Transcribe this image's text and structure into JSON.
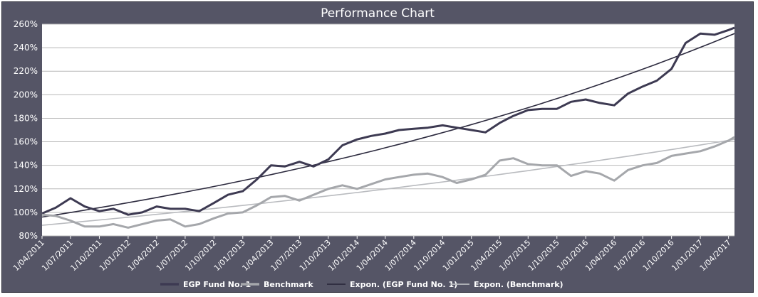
{
  "chart_data": {
    "type": "line",
    "title": "Performance Chart",
    "xlabel": "",
    "ylabel": "",
    "ylim": [
      80,
      260
    ],
    "y_ticks": [
      "80%",
      "100%",
      "120%",
      "140%",
      "160%",
      "180%",
      "200%",
      "220%",
      "240%",
      "260%"
    ],
    "x_ticks": [
      "1/04/2011",
      "1/07/2011",
      "1/10/2011",
      "1/01/2012",
      "1/04/2012",
      "1/07/2012",
      "1/10/2012",
      "1/01/2013",
      "1/04/2013",
      "1/07/2013",
      "1/10/2013",
      "1/01/2014",
      "1/04/2014",
      "1/07/2014",
      "1/10/2014",
      "1/01/2015",
      "1/04/2015",
      "1/07/2015",
      "1/10/2015",
      "1/01/2016",
      "1/04/2016",
      "1/07/2016",
      "1/10/2016",
      "1/01/2017",
      "1/04/2017"
    ],
    "grid": true,
    "legend_position": "bottom",
    "background_color": "#555566",
    "plot_color": "#ffffff",
    "series": [
      {
        "name": "EGP Fund No. 1",
        "color": "#3d3a52",
        "x": [
          "2011-04-01",
          "2011-05-15",
          "2011-07-01",
          "2011-08-15",
          "2011-10-01",
          "2011-11-15",
          "2012-01-01",
          "2012-02-15",
          "2012-04-01",
          "2012-05-15",
          "2012-07-01",
          "2012-08-15",
          "2012-10-01",
          "2012-11-15",
          "2013-01-01",
          "2013-02-15",
          "2013-04-01",
          "2013-05-15",
          "2013-07-01",
          "2013-08-15",
          "2013-10-01",
          "2013-11-15",
          "2014-01-01",
          "2014-02-15",
          "2014-04-01",
          "2014-05-15",
          "2014-07-01",
          "2014-08-15",
          "2014-10-01",
          "2014-11-15",
          "2015-01-01",
          "2015-02-15",
          "2015-04-01",
          "2015-05-15",
          "2015-07-01",
          "2015-08-15",
          "2015-10-01",
          "2015-11-15",
          "2016-01-01",
          "2016-02-15",
          "2016-04-01",
          "2016-05-15",
          "2016-07-01",
          "2016-08-15",
          "2016-10-01",
          "2016-11-15",
          "2017-01-01",
          "2017-02-15",
          "2017-04-01",
          "2017-04-20"
        ],
        "values": [
          99,
          104,
          112,
          105,
          101,
          103,
          98,
          100,
          105,
          103,
          103,
          101,
          108,
          115,
          118,
          128,
          140,
          139,
          143,
          139,
          145,
          157,
          162,
          165,
          167,
          170,
          171,
          172,
          174,
          172,
          170,
          168,
          176,
          182,
          187,
          188,
          188,
          194,
          196,
          193,
          191,
          201,
          207,
          212,
          222,
          244,
          252,
          251,
          255,
          257
        ]
      },
      {
        "name": "Benchmark",
        "color": "#a5a7ab",
        "x": [
          "2011-04-01",
          "2011-05-15",
          "2011-07-01",
          "2011-08-15",
          "2011-10-01",
          "2011-11-15",
          "2012-01-01",
          "2012-02-15",
          "2012-04-01",
          "2012-05-15",
          "2012-07-01",
          "2012-08-15",
          "2012-10-01",
          "2012-11-15",
          "2013-01-01",
          "2013-02-15",
          "2013-04-01",
          "2013-05-15",
          "2013-07-01",
          "2013-08-15",
          "2013-10-01",
          "2013-11-15",
          "2014-01-01",
          "2014-02-15",
          "2014-04-01",
          "2014-05-15",
          "2014-07-01",
          "2014-08-15",
          "2014-10-01",
          "2014-11-15",
          "2015-01-01",
          "2015-02-15",
          "2015-04-01",
          "2015-05-15",
          "2015-07-01",
          "2015-08-15",
          "2015-10-01",
          "2015-11-15",
          "2016-01-01",
          "2016-02-15",
          "2016-04-01",
          "2016-05-15",
          "2016-07-01",
          "2016-08-15",
          "2016-10-01",
          "2016-11-15",
          "2017-01-01",
          "2017-02-15",
          "2017-04-01",
          "2017-04-20"
        ],
        "values": [
          98,
          97,
          93,
          88,
          88,
          90,
          87,
          90,
          93,
          94,
          88,
          90,
          95,
          99,
          100,
          106,
          113,
          114,
          110,
          115,
          120,
          123,
          120,
          124,
          128,
          130,
          132,
          133,
          130,
          125,
          128,
          132,
          144,
          146,
          141,
          140,
          140,
          131,
          135,
          133,
          127,
          136,
          140,
          142,
          148,
          150,
          152,
          156,
          161,
          164
        ]
      },
      {
        "name": "Expon. (EGP Fund No. 1)",
        "color": "#2c2a3e",
        "trend": "exponential",
        "x": [
          "2011-04-01",
          "2017-04-20"
        ],
        "values": [
          96,
          252
        ]
      },
      {
        "name": "Expon. (Benchmark)",
        "color": "#b9bbbf",
        "trend": "exponential",
        "x": [
          "2011-04-01",
          "2017-04-20"
        ],
        "values": [
          89,
          162
        ]
      }
    ]
  }
}
